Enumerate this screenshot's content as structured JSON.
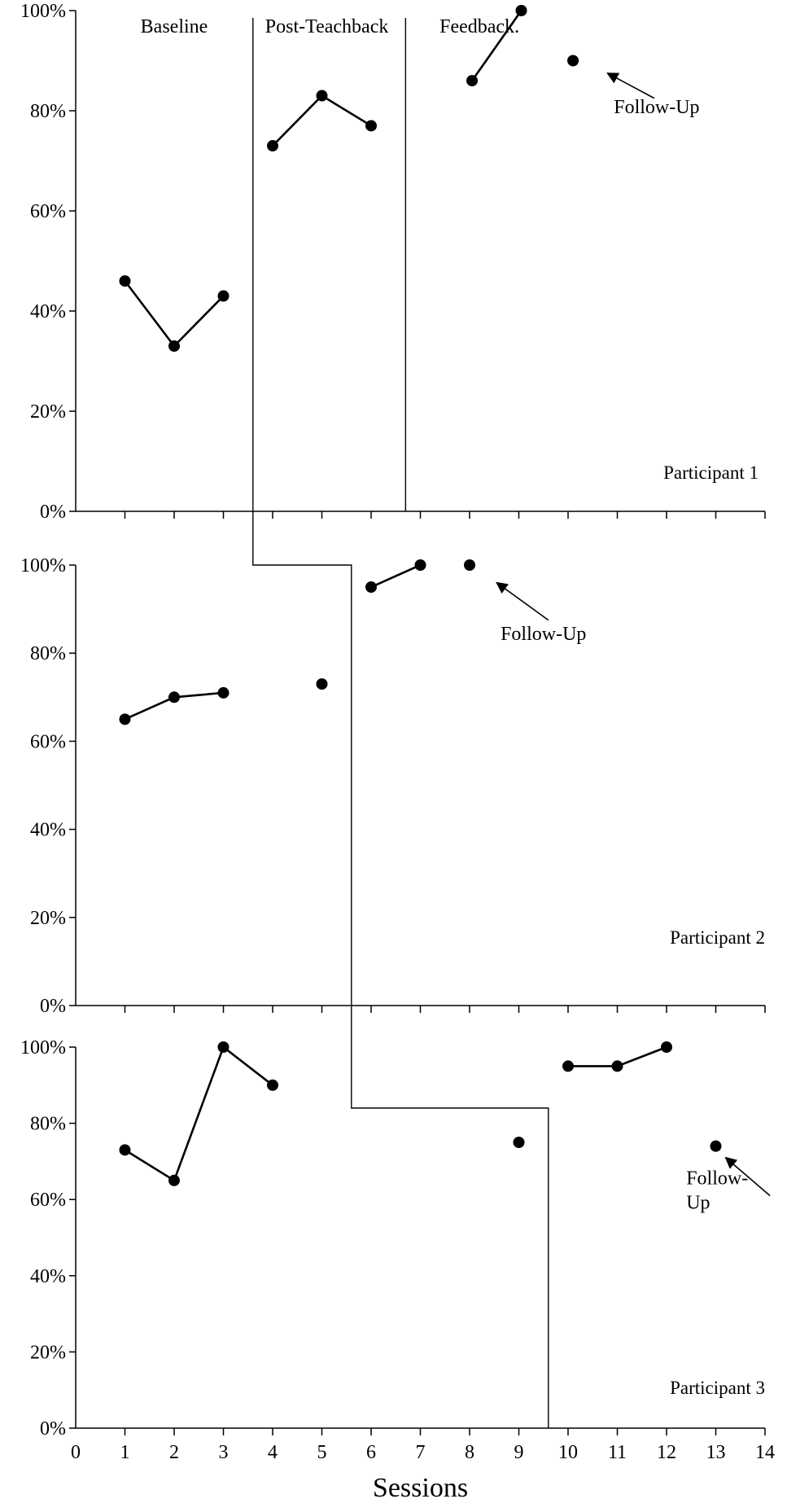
{
  "chart_data": {
    "type": "line",
    "xlabel": "Sessions",
    "x_ticks": [
      "0",
      "1",
      "2",
      "3",
      "4",
      "5",
      "6",
      "7",
      "8",
      "9",
      "10",
      "11",
      "12",
      "13",
      "14"
    ],
    "y_ticks": [
      "0%",
      "20%",
      "40%",
      "60%",
      "80%",
      "100%"
    ],
    "xlim": [
      0,
      14
    ],
    "ylim": [
      0,
      100
    ],
    "phase_labels": [
      "Baseline",
      "Post-Teachback",
      "Feedback."
    ],
    "panels": [
      {
        "participant": "Participant 1",
        "note": "Follow-Up",
        "phase_change_after_session": [
          3.6,
          6.7
        ],
        "segments": [
          {
            "x": [
              1,
              2,
              3
            ],
            "y": [
              46,
              33,
              43
            ]
          },
          {
            "x": [
              4,
              5,
              6
            ],
            "y": [
              73,
              83,
              77
            ]
          },
          {
            "x": [
              8.05,
              9.05
            ],
            "y": [
              86,
              100
            ]
          },
          {
            "x": [
              10.1
            ],
            "y": [
              90
            ]
          }
        ],
        "note_anchor": {
          "x": 11.8,
          "y": 79.5
        },
        "arrow_to": {
          "x": 10.8,
          "y": 87.5
        }
      },
      {
        "participant": "Participant 2",
        "note": "Follow-Up",
        "phase_change_after_session": [
          5.6
        ],
        "segments": [
          {
            "x": [
              1,
              2,
              3
            ],
            "y": [
              65,
              70,
              71
            ]
          },
          {
            "x": [
              5
            ],
            "y": [
              73
            ]
          },
          {
            "x": [
              6,
              7
            ],
            "y": [
              95,
              100
            ]
          },
          {
            "x": [
              8
            ],
            "y": [
              100
            ]
          }
        ],
        "note_anchor": {
          "x": 9.5,
          "y": 83
        },
        "arrow_to": {
          "x": 8.55,
          "y": 96
        }
      },
      {
        "participant": "Participant 3",
        "note_lines": [
          "Follow-",
          "Up"
        ],
        "phase_change_after_session": [
          9.6
        ],
        "segments": [
          {
            "x": [
              1,
              2,
              3,
              4
            ],
            "y": [
              73,
              65,
              100,
              90
            ]
          },
          {
            "x": [
              9
            ],
            "y": [
              75
            ]
          },
          {
            "x": [
              10,
              11,
              12
            ],
            "y": [
              95,
              95,
              100
            ]
          },
          {
            "x": [
              13
            ],
            "y": [
              74
            ]
          }
        ],
        "note_anchor": {
          "x": 12.7,
          "y": 64
        },
        "arrow_to": {
          "x": 13.2,
          "y": 71
        }
      }
    ]
  }
}
